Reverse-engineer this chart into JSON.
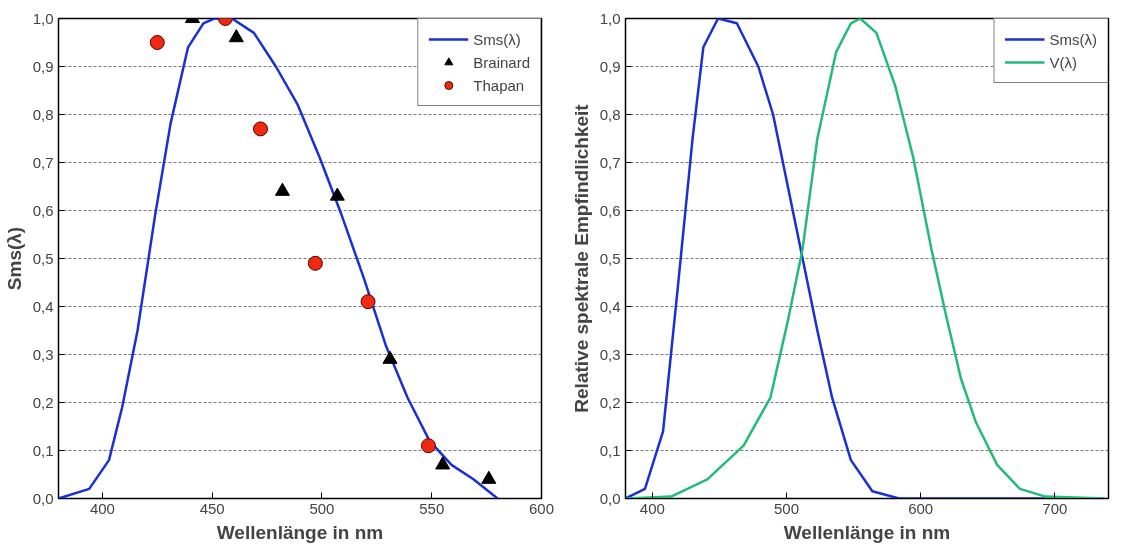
{
  "chart_data": [
    {
      "type": "line",
      "xlabel": "Wellenlänge in nm",
      "ylabel": "Sms(λ)",
      "xlim": [
        380,
        600
      ],
      "ylim": [
        0,
        1.0
      ],
      "xticks": [
        400,
        450,
        500,
        550,
        600
      ],
      "yticks": [
        {
          "value": 0,
          "label": "0,0"
        },
        {
          "value": 0.1,
          "label": "0,1"
        },
        {
          "value": 0.2,
          "label": "0,2"
        },
        {
          "value": 0.3,
          "label": "0,3"
        },
        {
          "value": 0.4,
          "label": "0,4"
        },
        {
          "value": 0.5,
          "label": "0,5"
        },
        {
          "value": 0.6,
          "label": "0,6"
        },
        {
          "value": 0.7,
          "label": "0,7"
        },
        {
          "value": 0.8,
          "label": "0,8"
        },
        {
          "value": 0.9,
          "label": "0,9"
        },
        {
          "value": 1.0,
          "label": "1,0"
        }
      ],
      "grid": "y",
      "legend": "top right",
      "series": [
        {
          "name": "Sms(λ)",
          "color": "#1a2fd6",
          "x": [
            380,
            394,
            403,
            409,
            416,
            424,
            431,
            439,
            446,
            451,
            459,
            469,
            479,
            489,
            499,
            509,
            519,
            529,
            539,
            549,
            559,
            569,
            580
          ],
          "values": [
            0,
            0.02,
            0.08,
            0.19,
            0.35,
            0.59,
            0.78,
            0.94,
            0.99,
            1.0,
            1.0,
            0.97,
            0.9,
            0.82,
            0.71,
            0.59,
            0.46,
            0.32,
            0.21,
            0.12,
            0.07,
            0.04,
            0.0
          ]
        },
        {
          "name": "Brainard",
          "type": "scatter",
          "marker": "triangle",
          "color": "#000000",
          "x": [
            441,
            461,
            482,
            507,
            531,
            555,
            576
          ],
          "values": [
            1.0,
            0.96,
            0.64,
            0.63,
            0.29,
            0.07,
            0.04
          ]
        },
        {
          "name": "Thapan",
          "type": "scatter",
          "marker": "circle",
          "color": "#f02a10",
          "x": [
            425,
            456,
            472,
            497,
            521,
            548.5
          ],
          "values": [
            0.95,
            1.0,
            0.77,
            0.49,
            0.41,
            0.11
          ]
        }
      ]
    },
    {
      "type": "line",
      "xlabel": "Wellenlänge in nm",
      "ylabel": "Relative spektrale Empfindlichkeit",
      "xlim": [
        380,
        740
      ],
      "ylim": [
        0,
        1.0
      ],
      "xticks": [
        400,
        500,
        600,
        700
      ],
      "yticks": [
        {
          "value": 0,
          "label": "0,0"
        },
        {
          "value": 0.1,
          "label": "0,1"
        },
        {
          "value": 0.2,
          "label": "0,2"
        },
        {
          "value": 0.3,
          "label": "0,3"
        },
        {
          "value": 0.4,
          "label": "0,4"
        },
        {
          "value": 0.5,
          "label": "0,5"
        },
        {
          "value": 0.6,
          "label": "0,6"
        },
        {
          "value": 0.7,
          "label": "0,7"
        },
        {
          "value": 0.8,
          "label": "0,8"
        },
        {
          "value": 0.9,
          "label": "0,9"
        },
        {
          "value": 1.0,
          "label": "1,0"
        }
      ],
      "grid": "y",
      "legend": "top right",
      "series": [
        {
          "name": "Sms(λ)",
          "color": "#1a2fd6",
          "x": [
            380,
            394.5,
            408,
            419,
            430,
            438,
            449,
            463,
            479,
            490,
            501,
            512,
            523,
            534,
            548,
            564,
            584,
            737
          ],
          "values": [
            0,
            0.02,
            0.14,
            0.44,
            0.75,
            0.94,
            1.0,
            0.99,
            0.9,
            0.8,
            0.65,
            0.5,
            0.35,
            0.21,
            0.08,
            0.015,
            0,
            0
          ]
        },
        {
          "name": "V(λ)",
          "color": "#22bb77",
          "x": [
            381,
            414,
            441,
            468,
            488,
            501,
            512,
            523,
            537,
            548,
            555,
            567,
            581,
            594.5,
            608,
            619,
            630,
            641,
            657,
            674,
            693,
            737
          ],
          "values": [
            0,
            0.004,
            0.04,
            0.11,
            0.21,
            0.37,
            0.52,
            0.75,
            0.93,
            0.99,
            1.0,
            0.97,
            0.86,
            0.71,
            0.52,
            0.38,
            0.25,
            0.16,
            0.07,
            0.02,
            0.004,
            0
          ]
        }
      ]
    }
  ]
}
